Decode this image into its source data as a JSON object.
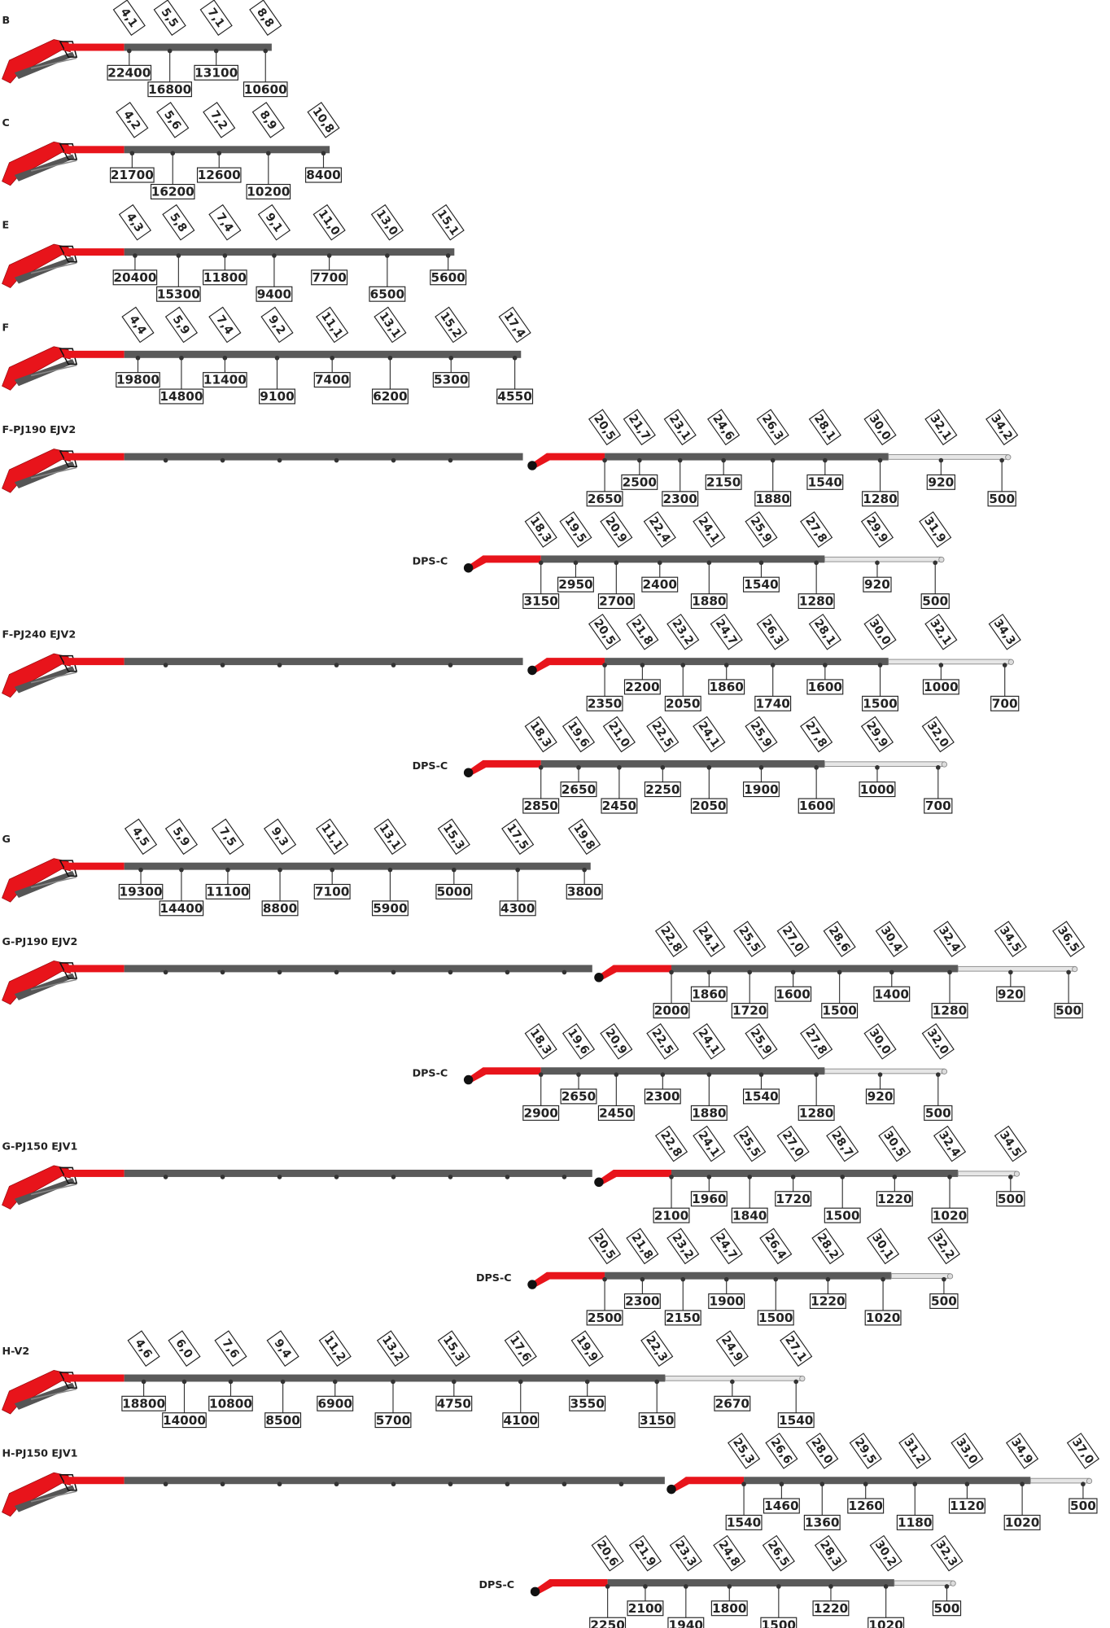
{
  "configurations": [
    {
      "label": "B",
      "reach": [
        "4,1",
        "5,5",
        "7,1",
        "8,8"
      ],
      "capacity": [
        22400,
        16800,
        13100,
        10600
      ]
    },
    {
      "label": "C",
      "reach": [
        "4,2",
        "5,6",
        "7,2",
        "8,9",
        "10,8"
      ],
      "capacity": [
        21700,
        16200,
        12600,
        10200,
        8400
      ]
    },
    {
      "label": "E",
      "reach": [
        "4,3",
        "5,8",
        "7,4",
        "9,1",
        "11,0",
        "13,0",
        "15,1"
      ],
      "capacity": [
        20400,
        15300,
        11800,
        9400,
        7700,
        6500,
        5600
      ]
    },
    {
      "label": "F",
      "reach": [
        "4,4",
        "5,9",
        "7,4",
        "9,2",
        "11,1",
        "13,1",
        "15,2",
        "17,4"
      ],
      "capacity": [
        19800,
        14800,
        11400,
        9100,
        7400,
        6200,
        5300,
        4550
      ]
    },
    {
      "label": "F-PJ190 EJV2",
      "reach": [
        "20,5",
        "21,7",
        "23,1",
        "24,6",
        "26,3",
        "28,1",
        "30,0",
        "32,1",
        "34,2"
      ],
      "capacity": [
        2650,
        2500,
        2300,
        2150,
        1880,
        1540,
        1280,
        920,
        500
      ]
    },
    {
      "label": "DPS-C",
      "reach": [
        "18,3",
        "19,5",
        "20,9",
        "22,4",
        "24,1",
        "25,9",
        "27,8",
        "29,9",
        "31,9"
      ],
      "capacity": [
        3150,
        2950,
        2700,
        2400,
        1880,
        1540,
        1280,
        920,
        500
      ]
    },
    {
      "label": "F-PJ240 EJV2",
      "reach": [
        "20,5",
        "21,8",
        "23,2",
        "24,7",
        "26,3",
        "28,1",
        "30,0",
        "32,1",
        "34,3"
      ],
      "capacity": [
        2350,
        2200,
        2050,
        1860,
        1740,
        1600,
        1500,
        1000,
        700
      ]
    },
    {
      "label": "DPS-C",
      "reach": [
        "18,3",
        "19,6",
        "21,0",
        "22,5",
        "24,1",
        "25,9",
        "27,8",
        "29,9",
        "32,0"
      ],
      "capacity": [
        2850,
        2650,
        2450,
        2250,
        2050,
        1900,
        1600,
        1000,
        700
      ]
    },
    {
      "label": "G",
      "reach": [
        "4,5",
        "5,9",
        "7,5",
        "9,3",
        "11,1",
        "13,1",
        "15,3",
        "17,5",
        "19,8"
      ],
      "capacity": [
        19300,
        14400,
        11100,
        8800,
        7100,
        5900,
        5000,
        4300,
        3800
      ]
    },
    {
      "label": "G-PJ190 EJV2",
      "reach": [
        "22,8",
        "24,1",
        "25,5",
        "27,0",
        "28,6",
        "30,4",
        "32,4",
        "34,5",
        "36,5"
      ],
      "capacity": [
        2000,
        1860,
        1720,
        1600,
        1500,
        1400,
        1280,
        920,
        500
      ]
    },
    {
      "label": "DPS-C",
      "reach": [
        "18,3",
        "19,6",
        "20,9",
        "22,5",
        "24,1",
        "25,9",
        "27,8",
        "30,0",
        "32,0"
      ],
      "capacity": [
        2900,
        2650,
        2450,
        2300,
        1880,
        1540,
        1280,
        920,
        500
      ]
    },
    {
      "label": "G-PJ150 EJV1",
      "reach": [
        "22,8",
        "24,1",
        "25,5",
        "27,0",
        "28,7",
        "30,5",
        "32,4",
        "34,5"
      ],
      "capacity": [
        2100,
        1960,
        1840,
        1720,
        1500,
        1220,
        1020,
        500
      ]
    },
    {
      "label": "DPS-C",
      "reach": [
        "20,5",
        "21,8",
        "23,2",
        "24,7",
        "26,4",
        "28,2",
        "30,1",
        "32,2"
      ],
      "capacity": [
        2500,
        2300,
        2150,
        1900,
        1500,
        1220,
        1020,
        500
      ]
    },
    {
      "label": "H-V2",
      "reach": [
        "4,6",
        "6,0",
        "7,6",
        "9,4",
        "11,2",
        "13,2",
        "15,3",
        "17,6",
        "19,9",
        "22,3",
        "24,9",
        "27,1"
      ],
      "capacity": [
        18800,
        14000,
        10800,
        8500,
        6900,
        5700,
        4750,
        4100,
        3550,
        3150,
        2670,
        1540
      ]
    },
    {
      "label": "H-PJ150 EJV1",
      "reach": [
        "25,3",
        "26,6",
        "28,0",
        "29,5",
        "31,2",
        "33,0",
        "34,9",
        "37,0"
      ],
      "capacity": [
        1540,
        1460,
        1360,
        1260,
        1180,
        1120,
        1020,
        500
      ]
    },
    {
      "label": "DPS-C",
      "reach": [
        "20,6",
        "21,9",
        "23,3",
        "24,8",
        "26,5",
        "28,3",
        "30,2",
        "32,3"
      ],
      "capacity": [
        2250,
        2100,
        1940,
        1800,
        1500,
        1220,
        1020,
        500
      ]
    }
  ]
}
